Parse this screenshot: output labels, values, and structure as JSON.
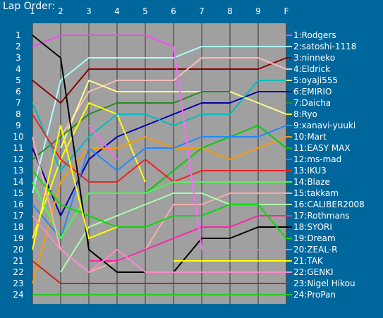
{
  "title": "Lap Order:",
  "chart_data": {
    "type": "line",
    "title": "Lap Order:",
    "x": [
      "1",
      "2",
      "3",
      "4",
      "5",
      "6",
      "7",
      "8",
      "9",
      "F"
    ],
    "y_ticks": [
      1,
      2,
      3,
      4,
      5,
      6,
      7,
      8,
      9,
      10,
      11,
      12,
      13,
      14,
      15,
      16,
      17,
      18,
      19,
      20,
      21,
      22,
      23,
      24
    ],
    "ylim": [
      1,
      24
    ],
    "y_inverted": true,
    "grid": true,
    "legend_position": "right",
    "plot_background": "#a0a0a0",
    "series": [
      {
        "name": "1:Rodgers",
        "color": "#ff44ff",
        "values": [
          2,
          1,
          1,
          1,
          1,
          2,
          null,
          null,
          null,
          null
        ]
      },
      {
        "name": "2:satoshi-1118",
        "color": "#aaffff",
        "values": [
          15,
          5,
          3,
          3,
          3,
          3,
          2,
          2,
          2,
          2
        ]
      },
      {
        "name": "3:ninneko",
        "color": "#8b0000",
        "values": [
          5,
          7,
          4,
          4,
          4,
          4,
          4,
          4,
          4,
          3
        ]
      },
      {
        "name": "4:Eldrick",
        "color": "#ffbbbb",
        "values": [
          null,
          10,
          6,
          5,
          5,
          5,
          3,
          3,
          3,
          4
        ]
      },
      {
        "name": "5:oyaji555",
        "color": "#ffff88",
        "values": [
          null,
          11,
          5,
          6,
          6,
          6,
          6,
          6,
          7,
          8
        ]
      },
      {
        "name": "6:EMIRIO",
        "color": "#0000aa",
        "values": [
          11,
          17,
          12,
          10,
          9,
          8,
          7,
          7,
          6,
          6
        ]
      },
      {
        "name": "7:Daicha",
        "color": "#228b22",
        "values": [
          12,
          10,
          8,
          7,
          7,
          7,
          6,
          6,
          null,
          null
        ]
      },
      {
        "name": "8:Ryo",
        "color": "#ffff00",
        "values": [
          19,
          12,
          7,
          8,
          14,
          null,
          null,
          null,
          null,
          null
        ]
      },
      {
        "name": "9:xanavi-yuuki",
        "color": "#00bbbb",
        "values": [
          7,
          13,
          10,
          8,
          8,
          9,
          8,
          8,
          5,
          5
        ]
      },
      {
        "name": "10:Mart",
        "color": "#ff9900",
        "values": [
          23,
          14,
          11,
          11,
          10,
          11,
          11,
          12,
          11,
          10
        ]
      },
      {
        "name": "11:EASY MAX",
        "color": "#00cc00",
        "values": [
          null,
          null,
          null,
          15,
          15,
          13,
          11,
          10,
          9,
          11
        ]
      },
      {
        "name": "12:ms-mad",
        "color": "#2288ff",
        "values": [
          16,
          19,
          11,
          13,
          11,
          11,
          10,
          10,
          10,
          9
        ]
      },
      {
        "name": "13:IKU3",
        "color": "#ee2222",
        "values": [
          8,
          12,
          14,
          14,
          12,
          14,
          13,
          13,
          13,
          13
        ]
      },
      {
        "name": "14:Blaze",
        "color": "#44ff44",
        "values": [
          14,
          19,
          15,
          15,
          15,
          14,
          14,
          14,
          14,
          14
        ]
      },
      {
        "name": "15:takkam",
        "color": "#ffaaaa",
        "values": [
          10,
          20,
          22,
          21,
          20,
          16,
          16,
          15,
          15,
          15
        ]
      },
      {
        "name": "16:CALIBER2008",
        "color": "#aaffaa",
        "values": [
          null,
          22,
          18,
          17,
          16,
          15,
          15,
          16,
          16,
          16
        ]
      },
      {
        "name": "17:Rothmans",
        "color": "#ff22aa",
        "values": [
          null,
          null,
          21,
          21,
          20,
          19,
          18,
          18,
          17,
          17
        ]
      },
      {
        "name": "18:SYORI",
        "color": "#000000",
        "values": [
          1,
          3,
          20,
          22,
          22,
          22,
          19,
          19,
          18,
          18
        ]
      },
      {
        "name": "19:Dream",
        "color": "#00dd00",
        "values": [
          13,
          16,
          17,
          18,
          18,
          17,
          17,
          16,
          16,
          19
        ]
      },
      {
        "name": "20:ZEAL-R",
        "color": "#ff66ff",
        "values": [
          null,
          null,
          9,
          12,
          null,
          2,
          20,
          20,
          20,
          20
        ]
      },
      {
        "name": "21:TAK",
        "color": "#ffff00",
        "values": [
          20,
          9,
          19,
          18,
          null,
          21,
          21,
          21,
          21,
          21
        ]
      },
      {
        "name": "22:GENKI",
        "color": "#ff88cc",
        "values": [
          17,
          20,
          22,
          20,
          22,
          22,
          22,
          22,
          22,
          22
        ]
      },
      {
        "name": "23:Nigel Hikou",
        "color": "#cc2222",
        "values": [
          21,
          23,
          23,
          23,
          23,
          23,
          23,
          23,
          23,
          23
        ]
      },
      {
        "name": "24:ProPan",
        "color": "#22cc22",
        "values": [
          24,
          24,
          24,
          24,
          24,
          24,
          24,
          24,
          24,
          24
        ]
      }
    ]
  }
}
